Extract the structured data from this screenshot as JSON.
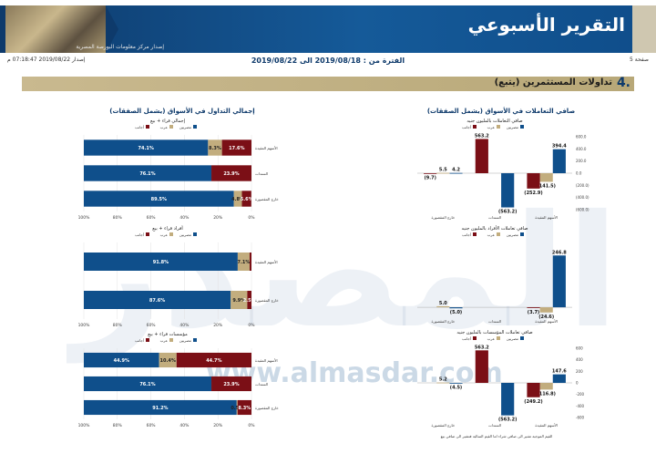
{
  "header": {
    "title": "التقرير الأسبوعي",
    "source": "إصدار مركز معلومات البورصة المصرية",
    "page": "صفحة 5",
    "issue": "إصدار 2019/08/22 07:18:47 م",
    "period": "الفترة من : 2019/08/18 الى 2019/08/22"
  },
  "section": {
    "number": "4.",
    "title": "تداولات المستثمرين   (يتبع)"
  },
  "left_panel_title": "إجمالي التداول في الأسواق (يشمل الصفقات)",
  "right_panel_title": "صافي التعاملات في الأسواق (يشمل الصفقات)",
  "watermark": {
    "logo": "المصدر",
    "url": "www.almasdar.com"
  },
  "footnote": "القيم الموجبة تشير الى صافي شراء اما القيم السالبة فتشير الى صافي بيع",
  "colors": {
    "blue": "#0f4f8b",
    "tan": "#c2ad7e",
    "maroon": "#7b0f16",
    "grid": "#e2e2e2"
  },
  "chart_data": [
    {
      "type": "bar",
      "title": "إجمالي قراء + بيع",
      "legend": [
        "مصريين",
        "عرب",
        "أجانب"
      ],
      "categories": [
        "الأسهم المقيدة",
        "السندات",
        "خارج المقصورة"
      ],
      "series": [
        {
          "name": "مصريين",
          "values": [
            74.1,
            76.1,
            89.5
          ]
        },
        {
          "name": "عرب",
          "values": [
            8.3,
            0.0,
            4.8
          ]
        },
        {
          "name": "أجانب",
          "values": [
            17.6,
            23.9,
            5.6
          ]
        }
      ],
      "labels": [
        [
          "74.1%",
          "8.3%",
          "17.6%"
        ],
        [
          "76.1%",
          "",
          "23.9%"
        ],
        [
          "89.5%",
          "4.8%",
          "5.6%"
        ]
      ],
      "ticks": [
        "100%",
        "80%",
        "60%",
        "40%",
        "20%",
        "0%"
      ]
    },
    {
      "type": "bar",
      "title": "أفراد قراء + بيع",
      "legend": [
        "مصريين",
        "عرب",
        "أجانب"
      ],
      "categories": [
        "الأسهم المقيدة",
        "خارج المقصورة"
      ],
      "series": [
        {
          "name": "مصريين",
          "values": [
            91.8,
            87.6
          ]
        },
        {
          "name": "عرب",
          "values": [
            7.1,
            9.9
          ]
        },
        {
          "name": "أجانب",
          "values": [
            1.1,
            2.5
          ]
        }
      ],
      "labels": [
        [
          "91.8%",
          "7.1%",
          ""
        ],
        [
          "87.6%",
          "9.9%",
          "2.5%"
        ]
      ],
      "ticks": [
        "100%",
        "80%",
        "60%",
        "40%",
        "20%",
        "0%"
      ]
    },
    {
      "type": "bar",
      "title": "مؤسسات قراء + بيع",
      "legend": [
        "مصريين",
        "عرب",
        "أجانب"
      ],
      "categories": [
        "الأسهم المقيدة",
        "السندات",
        "خارج المقصورة"
      ],
      "series": [
        {
          "name": "مصريين",
          "values": [
            44.9,
            76.1,
            91.2
          ]
        },
        {
          "name": "عرب",
          "values": [
            10.4,
            0.0,
            0.5
          ]
        },
        {
          "name": "أجانب",
          "values": [
            44.7,
            23.9,
            8.3
          ]
        }
      ],
      "labels": [
        [
          "44.9%",
          "10.4%",
          "44.7%"
        ],
        [
          "76.1%",
          "",
          "23.9%"
        ],
        [
          "91.2%",
          "0.5%",
          "8.3%"
        ]
      ],
      "ticks": [
        "100%",
        "80%",
        "60%",
        "40%",
        "20%",
        "0%"
      ]
    },
    {
      "type": "bar",
      "title": "صافي التعاملات بالمليون جنيه",
      "legend": [
        "مصريين",
        "عرب",
        "أجانب"
      ],
      "categories": [
        "الأسهم المقيدة",
        "السندات",
        "خارج المقصورة"
      ],
      "series": [
        {
          "name": "مصريين",
          "values": [
            394.4,
            -563.2,
            4.2
          ]
        },
        {
          "name": "عرب",
          "values": [
            -141.5,
            0.0,
            5.5
          ]
        },
        {
          "name": "أجانب",
          "values": [
            -252.9,
            563.2,
            -9.7
          ]
        }
      ],
      "labels": [
        [
          "394.4",
          "(141.5)",
          "(252.9)"
        ],
        [
          "(563.2)",
          "",
          "563.2"
        ],
        [
          "4.2",
          "5.5",
          "(9.7)"
        ]
      ],
      "ticks": [
        "600.0",
        "400.0",
        "200.0",
        "0.0",
        "(200.0)",
        "(400.0)",
        "(600.0)"
      ],
      "ylim": [
        -600,
        600
      ]
    },
    {
      "type": "bar",
      "title": "صافي تعاملات الأفراد بالمليون جنيه",
      "legend": [
        "مصريين",
        "عرب",
        "أجانب"
      ],
      "categories": [
        "الأسهم المقيدة",
        "السندات",
        "خارج المقصورة"
      ],
      "series": [
        {
          "name": "مصريين",
          "values": [
            246.8,
            0.0,
            -5.0
          ]
        },
        {
          "name": "عرب",
          "values": [
            -24.6,
            0.0,
            5.0
          ]
        },
        {
          "name": "أجانب",
          "values": [
            -3.7,
            0.0,
            0.0
          ]
        }
      ],
      "labels": [
        [
          "246.8",
          "(24.6)",
          "(3.7)"
        ],
        [
          "",
          "",
          ""
        ],
        [
          "(5.0)",
          "5.0",
          ""
        ]
      ],
      "ticks": [
        "",
        "",
        "",
        "",
        "",
        ""
      ],
      "ylim": [
        -30,
        300
      ]
    },
    {
      "type": "bar",
      "title": "صافي تعاملات المؤسسات بالمليون جنيه",
      "legend": [
        "مصريين",
        "عرب",
        "أجانب"
      ],
      "categories": [
        "الأسهم المقيدة",
        "السندات",
        "خارج المقصورة"
      ],
      "series": [
        {
          "name": "مصريين",
          "values": [
            147.6,
            -563.2,
            -4.5
          ]
        },
        {
          "name": "عرب",
          "values": [
            -116.8,
            0.0,
            5.2
          ]
        },
        {
          "name": "أجانب",
          "values": [
            -249.2,
            563.2,
            0.0
          ]
        }
      ],
      "labels": [
        [
          "147.6",
          "(116.8)",
          "(249.2)"
        ],
        [
          "(563.2)",
          "",
          "563.2"
        ],
        [
          "(4.5)",
          "5.2",
          ""
        ]
      ],
      "ticks": [
        "600",
        "400",
        "200",
        "0",
        "-200",
        "-400",
        "-600"
      ],
      "ylim": [
        -600,
        600
      ]
    }
  ]
}
